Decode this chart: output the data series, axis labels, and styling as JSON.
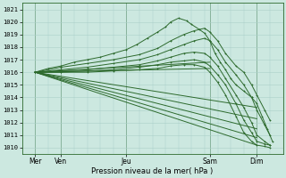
{
  "title": "Pression niveau de la mer( hPa )",
  "ylabel_ticks": [
    1010,
    1011,
    1012,
    1013,
    1014,
    1015,
    1016,
    1017,
    1018,
    1019,
    1020,
    1021
  ],
  "ylim": [
    1009.5,
    1021.5
  ],
  "xlim": [
    0,
    100
  ],
  "xtick_positions": [
    5,
    15,
    40,
    72,
    90
  ],
  "xtick_labels": [
    "Mer",
    "Ven",
    "Jeu",
    "Sam",
    "Dim"
  ],
  "vline_positions": [
    5,
    15,
    40,
    72,
    90
  ],
  "bg_color": "#cce8e0",
  "grid_color": "#aacfc8",
  "line_color": "#2d6a2d",
  "fan_lines": [
    {
      "x0": 5,
      "y0": 1016.0,
      "x1": 90,
      "y1": 1010.2
    },
    {
      "x0": 5,
      "y0": 1016.0,
      "x1": 90,
      "y1": 1010.8
    },
    {
      "x0": 5,
      "y0": 1016.0,
      "x1": 90,
      "y1": 1011.5
    },
    {
      "x0": 5,
      "y0": 1016.0,
      "x1": 90,
      "y1": 1012.3
    },
    {
      "x0": 5,
      "y0": 1016.0,
      "x1": 90,
      "y1": 1013.2
    },
    {
      "x0": 5,
      "y0": 1016.0,
      "x1": 72,
      "y1": 1016.3
    },
    {
      "x0": 5,
      "y0": 1016.0,
      "x1": 72,
      "y1": 1016.8
    }
  ],
  "curves": [
    {
      "xp": [
        5,
        10,
        15,
        20,
        25,
        30,
        35,
        40,
        44,
        48,
        52,
        55,
        57,
        60,
        63,
        65,
        68,
        70,
        72,
        74,
        76,
        78,
        80,
        82,
        85,
        88,
        90,
        92,
        94,
        96
      ],
      "yp": [
        1016.0,
        1016.3,
        1016.5,
        1016.8,
        1017.0,
        1017.2,
        1017.5,
        1017.8,
        1018.2,
        1018.7,
        1019.2,
        1019.6,
        1020.0,
        1020.3,
        1020.1,
        1019.8,
        1019.4,
        1019.1,
        1018.5,
        1017.5,
        1016.8,
        1016.2,
        1015.5,
        1015.0,
        1014.5,
        1014.0,
        1013.5,
        1012.5,
        1011.5,
        1010.5
      ],
      "marker": true
    },
    {
      "xp": [
        5,
        15,
        25,
        35,
        45,
        52,
        57,
        62,
        66,
        70,
        72,
        75,
        78,
        82,
        85,
        88,
        90,
        93,
        95
      ],
      "yp": [
        1016.0,
        1016.4,
        1016.7,
        1017.0,
        1017.4,
        1017.9,
        1018.5,
        1019.0,
        1019.3,
        1019.5,
        1019.2,
        1018.5,
        1017.5,
        1016.5,
        1016.0,
        1015.0,
        1014.2,
        1013.0,
        1012.2
      ],
      "marker": true
    },
    {
      "xp": [
        5,
        15,
        25,
        35,
        45,
        52,
        57,
        62,
        66,
        70,
        72,
        75,
        78,
        82,
        85,
        88,
        90,
        93,
        95
      ],
      "yp": [
        1016.0,
        1016.2,
        1016.4,
        1016.7,
        1017.0,
        1017.4,
        1017.8,
        1018.2,
        1018.5,
        1018.7,
        1018.5,
        1017.8,
        1016.8,
        1015.8,
        1015.0,
        1014.0,
        1013.0,
        1011.8,
        1011.0
      ],
      "marker": true
    },
    {
      "xp": [
        5,
        15,
        25,
        35,
        45,
        52,
        57,
        62,
        66,
        70,
        72,
        75,
        78,
        82,
        85,
        88,
        90,
        93,
        95
      ],
      "yp": [
        1016.0,
        1016.1,
        1016.2,
        1016.4,
        1016.6,
        1016.9,
        1017.2,
        1017.5,
        1017.6,
        1017.5,
        1017.2,
        1016.5,
        1015.5,
        1014.2,
        1013.2,
        1012.0,
        1011.0,
        1010.5,
        1010.2
      ],
      "marker": true
    },
    {
      "xp": [
        5,
        15,
        25,
        35,
        45,
        52,
        57,
        62,
        66,
        70,
        72,
        75,
        78,
        82,
        85,
        88,
        90,
        93,
        95
      ],
      "yp": [
        1016.0,
        1016.0,
        1016.1,
        1016.2,
        1016.4,
        1016.6,
        1016.8,
        1016.9,
        1017.0,
        1016.8,
        1016.5,
        1015.8,
        1015.0,
        1013.5,
        1012.2,
        1011.2,
        1010.5,
        1010.3,
        1010.2
      ],
      "marker": true
    },
    {
      "xp": [
        5,
        15,
        25,
        35,
        45,
        52,
        57,
        62,
        66,
        70,
        72,
        75,
        78,
        82,
        85,
        88,
        90,
        93,
        95
      ],
      "yp": [
        1016.0,
        1016.0,
        1016.0,
        1016.1,
        1016.2,
        1016.3,
        1016.5,
        1016.6,
        1016.6,
        1016.4,
        1016.0,
        1015.2,
        1014.2,
        1012.5,
        1011.2,
        1010.5,
        1010.2,
        1010.1,
        1010.0
      ],
      "marker": true
    }
  ]
}
